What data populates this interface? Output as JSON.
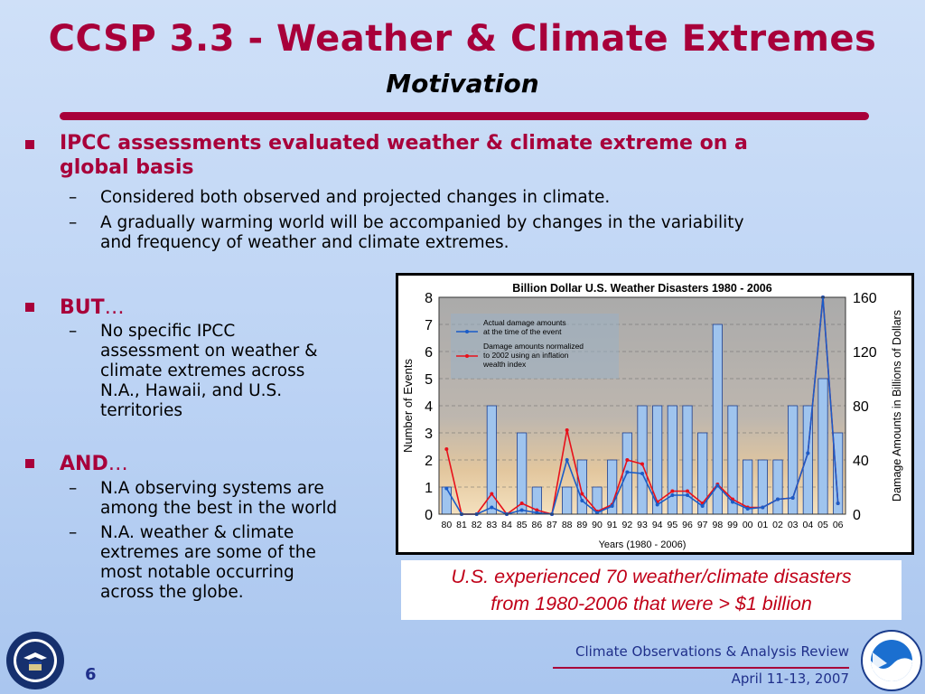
{
  "slide": {
    "title": "CCSP 3.3 - Weather & Climate Extremes",
    "subtitle": "Motivation",
    "bullet1": {
      "line1": "IPCC assessments evaluated weather & climate extreme on a",
      "line2": "global basis",
      "sub1": "Considered both observed and projected changes in climate.",
      "sub2_line1": "A gradually warming world will be accompanied by changes in the variability",
      "sub2_line2": "and frequency of weather and climate extremes."
    },
    "bullet2": {
      "label": "BUT",
      "ellipsis": "…",
      "sub1_lines": [
        "No specific IPCC",
        "assessment on weather &",
        "climate extremes across",
        "N.A., Hawaii, and U.S.",
        "territories"
      ]
    },
    "bullet3": {
      "label": "AND",
      "ellipsis": "…",
      "sub1_lines": [
        "N.A observing systems are",
        "among the best in the world"
      ],
      "sub2_lines": [
        "N.A. weather & climate",
        "extremes are some of the",
        "most notable occurring",
        "across the globe."
      ]
    },
    "dash": "–",
    "caption_line1": "U.S. experienced 70 weather/climate disasters",
    "caption_line2": "from 1980-2006 that were > $1 billion",
    "page_number": "6",
    "footer_line1": "Climate Observations & Analysis Review",
    "footer_line2": "April 11-13, 2007",
    "colors": {
      "accent": "#a8003a",
      "footer": "#1f2f8a",
      "caption": "#c00018"
    }
  },
  "chart_data": {
    "type": "bar",
    "title": "Billion Dollar U.S. Weather Disasters 1980 - 2006",
    "xlabel": "Years (1980 - 2006)",
    "ylabel": "Number of Events",
    "y2label": "Damage Amounts in Billions of Dollars",
    "ylim": [
      0,
      8
    ],
    "y2lim": [
      0,
      160
    ],
    "yticks": [
      "0",
      "1",
      "2",
      "3",
      "4",
      "5",
      "6",
      "7",
      "8"
    ],
    "y2ticks": [
      "0",
      "40",
      "80",
      "120",
      "160"
    ],
    "categories": [
      "80",
      "81",
      "82",
      "83",
      "84",
      "85",
      "86",
      "87",
      "88",
      "89",
      "90",
      "91",
      "92",
      "93",
      "94",
      "95",
      "96",
      "97",
      "98",
      "99",
      "00",
      "01",
      "02",
      "03",
      "04",
      "05",
      "06"
    ],
    "bar_series": {
      "name": "Number of Events",
      "values": [
        1,
        0,
        0,
        4,
        0,
        3,
        1,
        0,
        1,
        2,
        1,
        2,
        3,
        4,
        4,
        4,
        4,
        3,
        7,
        4,
        2,
        2,
        2,
        4,
        4,
        5,
        3
      ]
    },
    "series": [
      {
        "name": "Actual damage amounts at the time of the event",
        "color": "#1a5cc8",
        "legend_lines": [
          "Actual damage amounts",
          "at the time of the event"
        ],
        "values": [
          19,
          0,
          0,
          5,
          0,
          3,
          1,
          0,
          40,
          10,
          1,
          6,
          31,
          30,
          7,
          14,
          14,
          6,
          21,
          9,
          4,
          5,
          11,
          12,
          45,
          160,
          8
        ]
      },
      {
        "name": "Damage amounts normalized to 2002 using an inflation wealth index",
        "color": "#e8101a",
        "legend_lines": [
          "Damage amounts normalized",
          "to 2002 using an inflation",
          "wealth index"
        ],
        "values": [
          48,
          0,
          0,
          15,
          0,
          8,
          3,
          0,
          62,
          15,
          2,
          7,
          40,
          37,
          9,
          17,
          17,
          8,
          22,
          11,
          5,
          5,
          11,
          12,
          45,
          160,
          8
        ]
      }
    ],
    "grid": true,
    "legend_position": "top-left"
  }
}
